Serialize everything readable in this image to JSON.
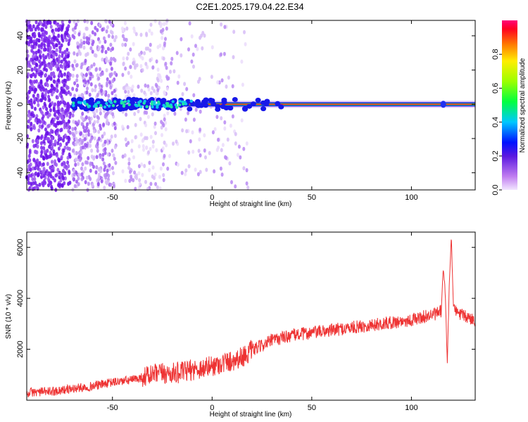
{
  "title": "C2E1.2025.179.04.22.E34",
  "chart_data": [
    {
      "type": "heatmap",
      "xlabel": "Height of straight line (km)",
      "ylabel": "Frequency (Hz)",
      "xlim": [
        -93,
        132
      ],
      "ylim": [
        -50,
        49
      ],
      "xticks": [
        -50,
        0,
        50,
        100
      ],
      "yticks": [
        -40,
        -20,
        0,
        20,
        40
      ],
      "colorbar": {
        "label": "Normalized spectral amplitude",
        "range": [
          0,
          1
        ],
        "ticks": [
          0.0,
          0.2,
          0.4,
          0.6,
          0.8
        ],
        "tick_labels": [
          "0.0",
          "0.2",
          "0.4",
          "0.6",
          "0.8"
        ]
      },
      "ridge": {
        "frequency_hz": 0,
        "strong_from_km": -15,
        "strong_to_km": 132,
        "cluster_from_km": -70,
        "cluster_to_km": -15,
        "noise_to_km": -22,
        "feature_km": 116
      }
    },
    {
      "type": "line",
      "xlabel": "Height of straight line (km)",
      "ylabel": "SNR (10 * v/v)",
      "xlim": [
        -93,
        132
      ],
      "ylim": [
        0,
        6600
      ],
      "xticks": [
        -50,
        0,
        50,
        100
      ],
      "yticks": [
        2000,
        4000,
        6000
      ],
      "series": [
        {
          "color": "#ee3333",
          "x": [
            -93,
            -80,
            -70,
            -60,
            -50,
            -40,
            -35,
            -30,
            -25,
            -20,
            -15,
            -10,
            -5,
            0,
            5,
            10,
            15,
            20,
            30,
            40,
            50,
            60,
            70,
            80,
            90,
            100,
            105,
            110,
            113,
            115,
            116,
            117,
            118,
            119,
            120,
            121,
            122,
            125,
            128,
            132
          ],
          "y": [
            300,
            350,
            450,
            550,
            700,
            800,
            900,
            1000,
            1050,
            1050,
            1100,
            1200,
            1250,
            1350,
            1450,
            1550,
            1700,
            1950,
            2350,
            2550,
            2650,
            2750,
            2850,
            2950,
            3050,
            3150,
            3250,
            3350,
            3400,
            3500,
            5200,
            4200,
            1400,
            4500,
            6500,
            3800,
            3500,
            3350,
            3250,
            3150
          ]
        }
      ]
    }
  ]
}
